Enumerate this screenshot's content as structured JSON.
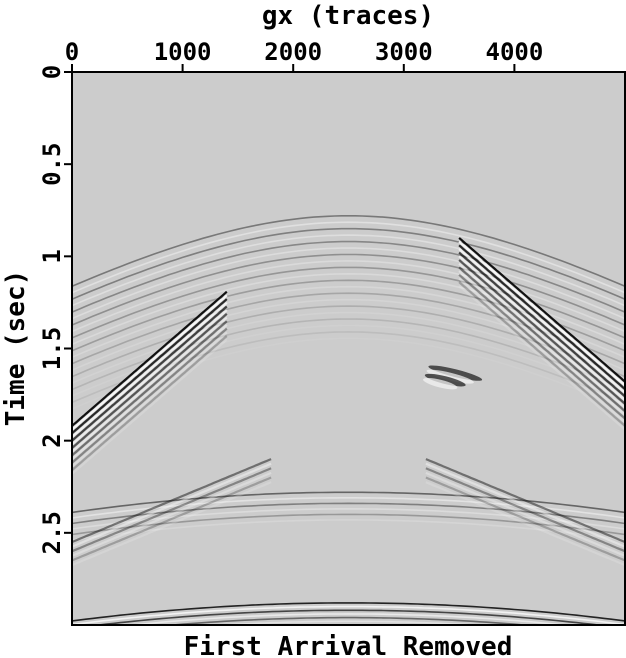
{
  "chart_data": {
    "type": "heatmap",
    "title": "First Arrival Removed",
    "xlabel": "gx (traces)",
    "ylabel": "Time (sec)",
    "x_axis_position": "top",
    "xlim": [
      0,
      5000
    ],
    "ylim": [
      0,
      3.0
    ],
    "y_inverted": true,
    "x_ticks": [
      {
        "value": 0,
        "label": "0"
      },
      {
        "value": 1000,
        "label": "1000"
      },
      {
        "value": 2000,
        "label": "2000"
      },
      {
        "value": 3000,
        "label": "3000"
      },
      {
        "value": 4000,
        "label": "4000"
      }
    ],
    "y_ticks": [
      {
        "value": 0,
        "label": "0"
      },
      {
        "value": 0.5,
        "label": "0.5"
      },
      {
        "value": 1.0,
        "label": "1"
      },
      {
        "value": 1.5,
        "label": "1.5"
      },
      {
        "value": 2.0,
        "label": "2"
      },
      {
        "value": 2.5,
        "label": "2.5"
      }
    ],
    "colormap": "grayscale",
    "background_color": "#cccccc",
    "grid": false,
    "events": [
      {
        "kind": "hyperbola",
        "apex_x": 2500,
        "apex_t": 0.78,
        "velocity": 2900,
        "x_range": [
          0,
          5000
        ],
        "strength": 0.45,
        "cycles": 10,
        "spacing": 0.07
      },
      {
        "kind": "hyperbola",
        "apex_x": 2500,
        "apex_t": 2.28,
        "velocity": 3500,
        "x_range": [
          0,
          5000
        ],
        "strength": 0.55,
        "cycles": 3,
        "spacing": 0.06
      },
      {
        "kind": "hyperbola",
        "apex_x": 2500,
        "apex_t": 2.88,
        "velocity": 3300,
        "x_range": [
          0,
          5000
        ],
        "strength": 0.9,
        "cycles": 4,
        "spacing": 0.04
      },
      {
        "kind": "linear",
        "t_at_x0": 1.92,
        "slope": -0.00052,
        "x_range": [
          0,
          1400
        ],
        "strength": 1.0,
        "cycles": 7,
        "spacing": 0.04
      },
      {
        "kind": "linear",
        "t_at_x0": -0.92,
        "slope": 0.00052,
        "x_range": [
          3500,
          5000
        ],
        "strength": 1.0,
        "cycles": 7,
        "spacing": 0.04
      },
      {
        "kind": "blob",
        "x": 3450,
        "t": 1.67,
        "rx": 250,
        "rt": 0.06,
        "strength": 0.9
      },
      {
        "kind": "linear",
        "t_at_x0": 2.55,
        "slope": -0.00025,
        "x_range": [
          0,
          1800
        ],
        "strength": 0.5,
        "cycles": 3,
        "spacing": 0.05
      },
      {
        "kind": "linear",
        "t_at_x0": 1.3,
        "slope": 0.00025,
        "x_range": [
          3200,
          5000
        ],
        "strength": 0.5,
        "cycles": 3,
        "spacing": 0.05
      }
    ]
  }
}
